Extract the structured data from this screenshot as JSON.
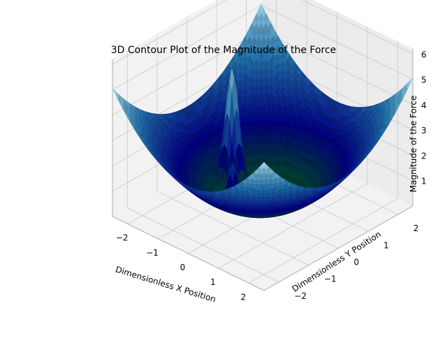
{
  "chart_data": {
    "type": "contour3d",
    "title": "3D Contour Plot of the Magnitude of the Force",
    "xlabel": "Dimensionless X Position",
    "ylabel": "Dimensionless Y Position",
    "zlabel": "Magnitude of the Force",
    "xlim": [
      -2.5,
      2.5
    ],
    "ylim": [
      -2.5,
      2.5
    ],
    "zlim": [
      0,
      6
    ],
    "x_ticks": [
      "−2",
      "−1",
      "0",
      "1",
      "2"
    ],
    "y_ticks": [
      "−2",
      "−1",
      "0",
      "1",
      "2"
    ],
    "z_ticks": [
      "1",
      "2",
      "3",
      "4",
      "5",
      "6"
    ],
    "colormap": [
      "#006400",
      "#00007f",
      "#1f6fa8",
      "#a6d9ea"
    ],
    "grid": true,
    "peaks": [
      {
        "x": -1.0,
        "y": 0.0,
        "z": 5.0
      },
      {
        "x": 0.0,
        "y": -1.0,
        "z": 2.6
      }
    ]
  }
}
